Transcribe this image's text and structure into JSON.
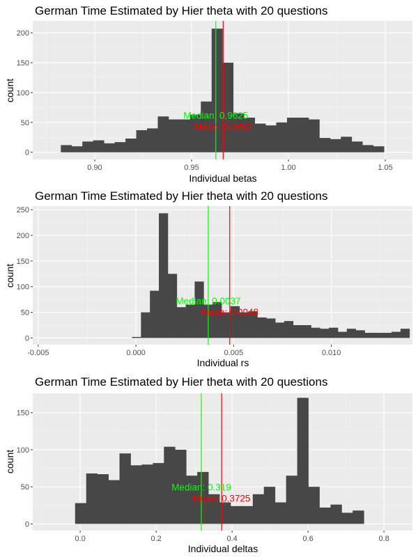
{
  "chart_data": [
    {
      "type": "bar",
      "title": "German Time Estimated by Hier theta with 20 questions",
      "xlabel": "Individual betas",
      "ylabel": "count",
      "xlim": [
        0.868,
        1.064
      ],
      "ylim": [
        -12,
        220
      ],
      "xticks": [
        0.9,
        0.95,
        1.0,
        1.05
      ],
      "xtick_labels": [
        "0.90",
        "0.95",
        "1.00",
        "1.05"
      ],
      "yticks": [
        0,
        50,
        100,
        150,
        200
      ],
      "ytick_labels": [
        "0",
        "50",
        "100",
        "150",
        "200"
      ],
      "bins": {
        "start": 0.8825,
        "width": 0.00556
      },
      "values": [
        12,
        10,
        18,
        20,
        15,
        17,
        23,
        37,
        40,
        60,
        55,
        55,
        63,
        85,
        207,
        150,
        65,
        58,
        48,
        45,
        50,
        58,
        58,
        55,
        24,
        22,
        26,
        18,
        12,
        10
      ],
      "median": {
        "value": 0.9625,
        "label": "Median: 0.9625",
        "color": "#00ff00"
      },
      "mean": {
        "value": 0.9663,
        "label": "Mean: 0.9663",
        "color": "#ff0000"
      },
      "grid": true
    },
    {
      "type": "bar",
      "title": "German Time Estimated by Hier theta with 20 questions",
      "xlabel": "Individual rs",
      "ylabel": "count",
      "xlim": [
        -0.00528,
        0.01415
      ],
      "ylim": [
        -13,
        257
      ],
      "xticks": [
        -0.005,
        0.0,
        0.005,
        0.01
      ],
      "xtick_labels": [
        "-0.005",
        "0.000",
        "0.005",
        "0.010"
      ],
      "yticks": [
        0,
        50,
        100,
        150,
        200,
        250
      ],
      "ytick_labels": [
        "0",
        "50",
        "100",
        "150",
        "200",
        "250"
      ],
      "bins": {
        "start": -0.0002,
        "width": 0.000458
      },
      "values": [
        2,
        50,
        92,
        243,
        125,
        60,
        65,
        110,
        65,
        70,
        50,
        62,
        50,
        52,
        40,
        38,
        30,
        33,
        25,
        25,
        20,
        18,
        20,
        12,
        18,
        15,
        10,
        10,
        10,
        12,
        18
      ],
      "median": {
        "value": 0.0037,
        "label": "Median: 0.0037",
        "color": "#00ff00"
      },
      "mean": {
        "value": 0.0048,
        "label": "Mean: 0.0048",
        "color": "#ff0000"
      },
      "grid": true
    },
    {
      "type": "bar",
      "title": "German Time Estimated by Hier theta with 20 questions",
      "xlabel": "Individual deltas",
      "ylabel": "count",
      "xlim": [
        -0.125,
        0.875
      ],
      "ylim": [
        -9,
        176
      ],
      "xticks": [
        0.0,
        0.2,
        0.4,
        0.6,
        0.8
      ],
      "xtick_labels": [
        "0.0",
        "0.2",
        "0.4",
        "0.6",
        "0.8"
      ],
      "yticks": [
        0,
        50,
        100,
        150
      ],
      "ytick_labels": [
        "0",
        "50",
        "100",
        "150"
      ],
      "bins": {
        "start": -0.0135,
        "width": 0.02925
      },
      "values": [
        28,
        68,
        67,
        59,
        95,
        79,
        80,
        82,
        104,
        100,
        65,
        70,
        40,
        29,
        24,
        24,
        40,
        50,
        29,
        65,
        170,
        50,
        22,
        26,
        15,
        18
      ],
      "median": {
        "value": 0.319,
        "label": "Median: 0.319",
        "color": "#00ff00"
      },
      "mean": {
        "value": 0.3725,
        "label": "Mean: 0.3725",
        "color": "#ff0000"
      },
      "grid": true
    }
  ]
}
